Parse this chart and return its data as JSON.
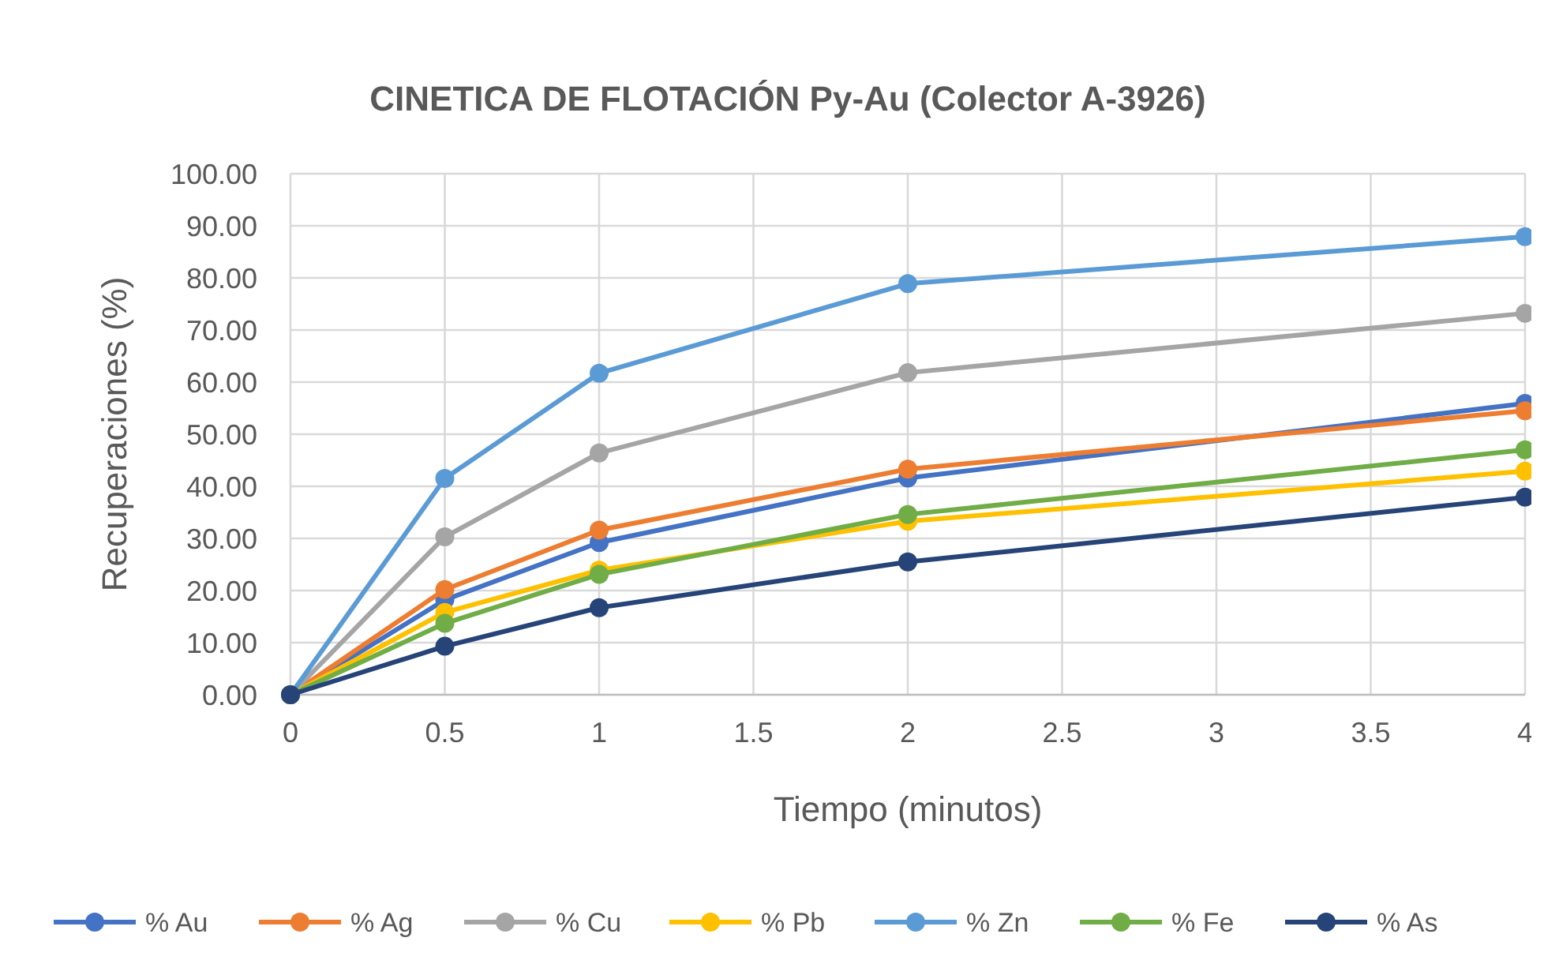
{
  "chart_data": {
    "type": "line",
    "title": "CINETICA DE FLOTACIÓN Py-Au (Colector A-3926)",
    "xlabel": "Tiempo (minutos)",
    "ylabel": "Recuperaciones (%)",
    "x": [
      0,
      0.5,
      1,
      2,
      4
    ],
    "series": [
      {
        "name": "% Au",
        "color": "#4472c4",
        "values": [
          0,
          18.2,
          29.2,
          41.6,
          55.9
        ]
      },
      {
        "name": "% Ag",
        "color": "#ed7d31",
        "values": [
          0,
          20.2,
          31.6,
          43.3,
          54.5
        ]
      },
      {
        "name": "% Cu",
        "color": "#a5a5a5",
        "values": [
          0,
          30.3,
          46.4,
          61.8,
          73.2
        ]
      },
      {
        "name": "% Pb",
        "color": "#ffc000",
        "values": [
          0,
          15.8,
          23.9,
          33.3,
          42.9
        ]
      },
      {
        "name": "% Zn",
        "color": "#5b9bd5",
        "values": [
          0,
          41.5,
          61.7,
          78.9,
          87.9
        ]
      },
      {
        "name": "% Fe",
        "color": "#70ad47",
        "values": [
          0,
          13.7,
          23.1,
          34.6,
          47
        ]
      },
      {
        "name": "% As",
        "color": "#264478",
        "values": [
          0,
          9.3,
          16.7,
          25.5,
          37.9
        ]
      }
    ],
    "xlim": [
      0,
      4
    ],
    "xticks": [
      0,
      0.5,
      1,
      1.5,
      2,
      2.5,
      3,
      3.5,
      4
    ],
    "ylim": [
      0,
      100
    ],
    "yticks": [
      {
        "value": 0,
        "label": "0.00"
      },
      {
        "value": 10,
        "label": "10.00"
      },
      {
        "value": 20,
        "label": "20.00"
      },
      {
        "value": 30,
        "label": "30.00"
      },
      {
        "value": 40,
        "label": "40.00"
      },
      {
        "value": 50,
        "label": "50.00"
      },
      {
        "value": 60,
        "label": "60.00"
      },
      {
        "value": 70,
        "label": "70.00"
      },
      {
        "value": 80,
        "label": "80.00"
      },
      {
        "value": 90,
        "label": "90.00"
      },
      {
        "value": 100,
        "label": "100.00"
      }
    ],
    "grid": true,
    "legend": "bottom",
    "marker": "circle",
    "line_style": "solid"
  }
}
